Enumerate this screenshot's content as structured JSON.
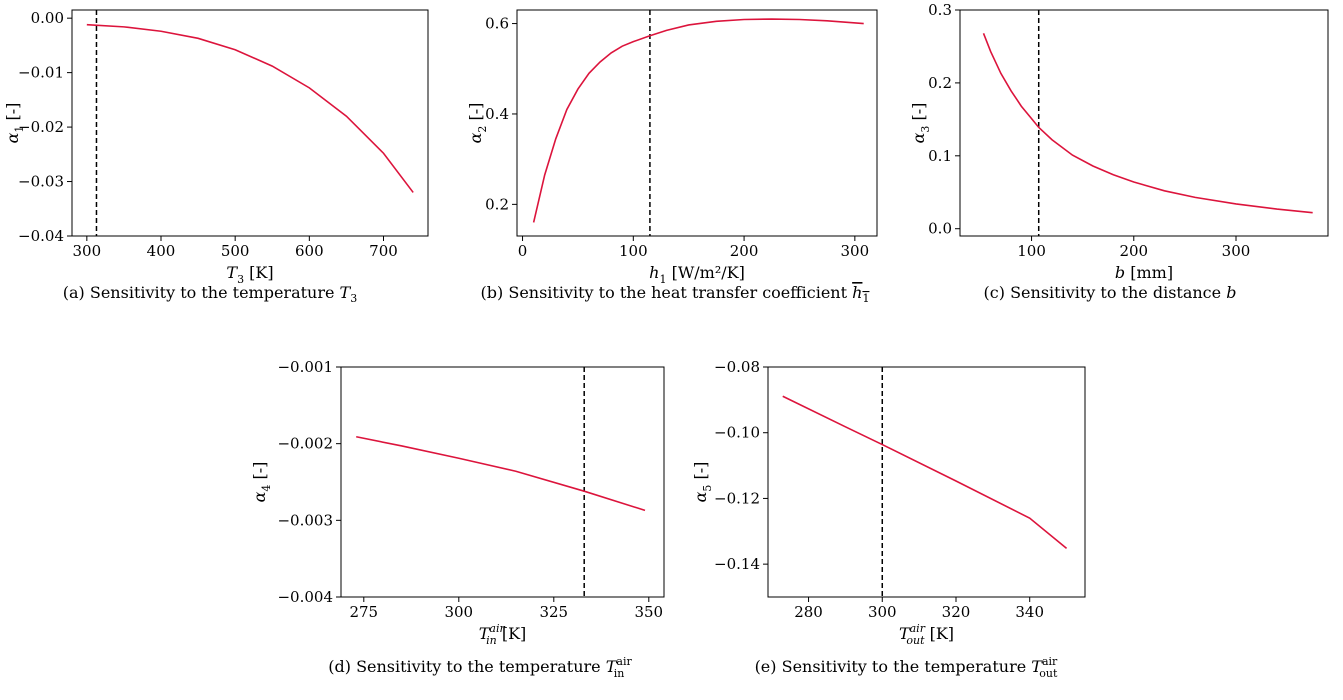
{
  "chart_data": [
    {
      "type": "line",
      "xlabel": "T_3 [K]",
      "ylabel": "α_1 [-]",
      "caption": "(a)  Sensitivity to the temperature T3",
      "xlim": [
        280,
        760
      ],
      "ylim": [
        -0.04,
        0.0015
      ],
      "xticks": [
        300,
        400,
        500,
        600,
        700
      ],
      "yticks": [
        0.0,
        -0.01,
        -0.02,
        -0.03,
        -0.04
      ],
      "ytick_labels": [
        "0.00",
        "−0.01",
        "−0.02",
        "−0.03",
        "−0.04"
      ],
      "xtick_labels": [
        "300",
        "400",
        "500",
        "600",
        "700"
      ],
      "vline": 313,
      "series": [
        {
          "color": "#dc143c",
          "x": [
            300,
            350,
            400,
            450,
            500,
            550,
            600,
            650,
            700,
            740
          ],
          "y": [
            -0.0012,
            -0.0016,
            -0.0024,
            -0.0037,
            -0.0058,
            -0.0088,
            -0.0128,
            -0.018,
            -0.0248,
            -0.032
          ]
        }
      ]
    },
    {
      "type": "line",
      "xlabel": "h_1 [W/m²/K]",
      "ylabel": "α_2 [-]",
      "caption": "(b)  Sensitivity to the heat transfer coefficient h1",
      "xlim": [
        -5,
        320
      ],
      "ylim": [
        0.13,
        0.63
      ],
      "xticks": [
        0,
        100,
        200,
        300
      ],
      "yticks": [
        0.2,
        0.4,
        0.6
      ],
      "ytick_labels": [
        "0.2",
        "0.4",
        "0.6"
      ],
      "xtick_labels": [
        "0",
        "100",
        "200",
        "300"
      ],
      "vline": 115,
      "series": [
        {
          "color": "#dc143c",
          "x": [
            10,
            20,
            30,
            40,
            50,
            60,
            70,
            80,
            90,
            100,
            115,
            130,
            150,
            175,
            200,
            225,
            250,
            275,
            308
          ],
          "y": [
            0.16,
            0.265,
            0.345,
            0.41,
            0.455,
            0.49,
            0.515,
            0.535,
            0.55,
            0.56,
            0.573,
            0.585,
            0.597,
            0.605,
            0.609,
            0.61,
            0.609,
            0.606,
            0.6
          ]
        }
      ]
    },
    {
      "type": "line",
      "xlabel": "b [mm]",
      "ylabel": "α_3 [-]",
      "caption": "(c) Sensitivity to the distance b",
      "xlim": [
        30,
        390
      ],
      "ylim": [
        -0.01,
        0.3
      ],
      "xticks": [
        100,
        200,
        300
      ],
      "yticks": [
        0.0,
        0.1,
        0.2,
        0.3
      ],
      "ytick_labels": [
        "0.0",
        "0.1",
        "0.2",
        "0.3"
      ],
      "xtick_labels": [
        "100",
        "200",
        "300"
      ],
      "vline": 107,
      "series": [
        {
          "color": "#dc143c",
          "x": [
            53,
            60,
            70,
            80,
            90,
            100,
            107,
            120,
            140,
            160,
            180,
            200,
            230,
            260,
            300,
            340,
            375
          ],
          "y": [
            0.268,
            0.243,
            0.213,
            0.189,
            0.168,
            0.151,
            0.139,
            0.122,
            0.101,
            0.086,
            0.074,
            0.064,
            0.052,
            0.043,
            0.034,
            0.027,
            0.022
          ]
        }
      ]
    },
    {
      "type": "line",
      "xlabel": "T_in^air [K]",
      "ylabel": "α_4 [-]",
      "caption": "(d)  Sensitivity to the temperature T_in^air",
      "xlim": [
        269,
        354
      ],
      "ylim": [
        -0.004,
        -0.001
      ],
      "xticks": [
        275,
        300,
        325,
        350
      ],
      "yticks": [
        -0.001,
        -0.002,
        -0.003,
        -0.004
      ],
      "ytick_labels": [
        "−0.001",
        "−0.002",
        "−0.003",
        "−0.004"
      ],
      "xtick_labels": [
        "275",
        "300",
        "325",
        "350"
      ],
      "vline": 333,
      "series": [
        {
          "color": "#dc143c",
          "x": [
            273,
            285,
            300,
            315,
            333,
            349
          ],
          "y": [
            -0.00191,
            -0.00203,
            -0.00219,
            -0.00236,
            -0.00262,
            -0.00287
          ]
        }
      ]
    },
    {
      "type": "line",
      "xlabel": "T_out^air [K]",
      "ylabel": "α_5 [-]",
      "caption": "(e)  Sensitivity to the temperature T_out^air",
      "xlim": [
        269,
        355
      ],
      "ylim": [
        -0.15,
        -0.08
      ],
      "xticks": [
        280,
        300,
        320,
        340
      ],
      "yticks": [
        -0.08,
        -0.1,
        -0.12,
        -0.14
      ],
      "ytick_labels": [
        "−0.08",
        "−0.10",
        "−0.12",
        "−0.14"
      ],
      "xtick_labels": [
        "280",
        "300",
        "320",
        "340"
      ],
      "vline": 300,
      "series": [
        {
          "color": "#dc143c",
          "x": [
            273,
            290,
            300,
            320,
            340,
            350
          ],
          "y": [
            -0.0889,
            -0.0982,
            -0.1036,
            -0.1147,
            -0.126,
            -0.1352
          ]
        }
      ]
    }
  ]
}
